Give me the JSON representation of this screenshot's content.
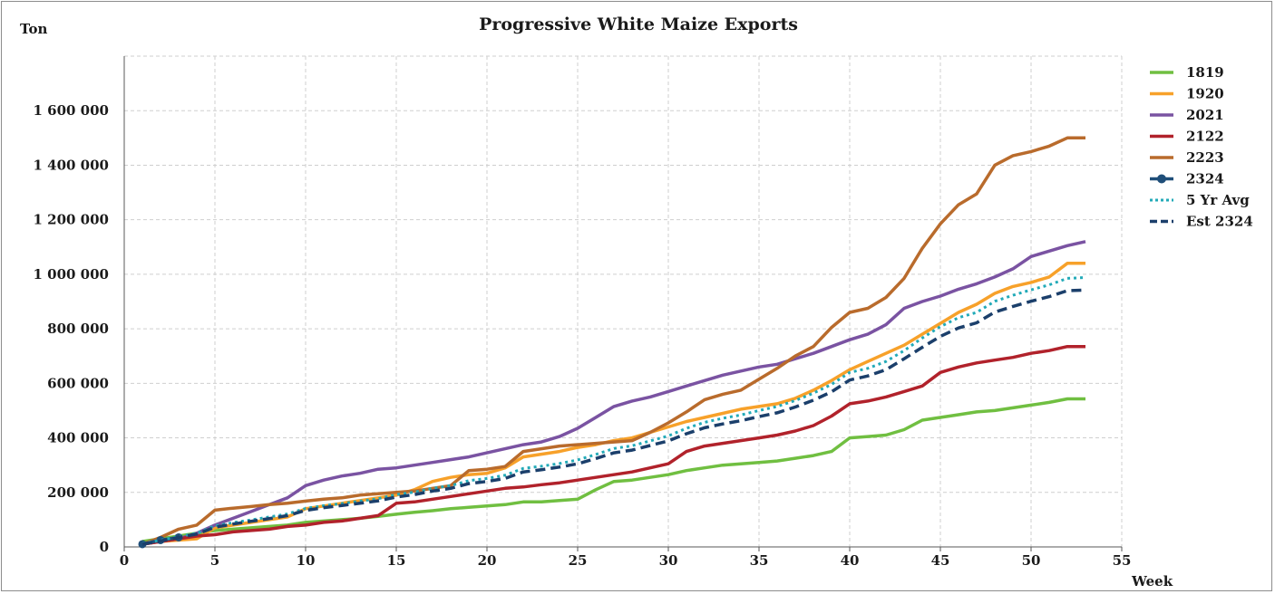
{
  "chart_data": {
    "type": "line",
    "title": "Progressive White Maize Exports",
    "xlabel": "Week",
    "ylabel": "Ton",
    "xlim": [
      0,
      55
    ],
    "ylim": [
      0,
      1800000
    ],
    "xticks": [
      "0",
      "5",
      "10",
      "15",
      "20",
      "25",
      "30",
      "35",
      "40",
      "45",
      "50",
      "55"
    ],
    "yticks": [
      "0",
      "200 000",
      "400 000",
      "600 000",
      "800 000",
      "1 000 000",
      "1 200 000",
      "1 400 000",
      "1 600 000"
    ],
    "grid": true,
    "legend_position": "right",
    "series": [
      {
        "name": "1819",
        "color": "#70bf41",
        "style": "solid",
        "x": [
          1,
          2,
          3,
          4,
          5,
          6,
          7,
          8,
          9,
          10,
          11,
          12,
          13,
          14,
          15,
          16,
          17,
          18,
          19,
          20,
          21,
          22,
          23,
          24,
          25,
          26,
          27,
          28,
          29,
          30,
          31,
          32,
          33,
          34,
          35,
          36,
          37,
          38,
          39,
          40,
          41,
          42,
          43,
          44,
          45,
          46,
          47,
          48,
          49,
          50,
          51,
          52,
          53
        ],
        "y": [
          20000,
          30000,
          40000,
          50000,
          60000,
          65000,
          70000,
          75000,
          80000,
          90000,
          95000,
          100000,
          105000,
          112000,
          120000,
          127000,
          133000,
          140000,
          145000,
          150000,
          155000,
          165000,
          165000,
          170000,
          175000,
          210000,
          240000,
          245000,
          255000,
          265000,
          280000,
          290000,
          300000,
          305000,
          310000,
          315000,
          325000,
          335000,
          350000,
          400000,
          405000,
          410000,
          430000,
          465000,
          475000,
          485000,
          495000,
          500000,
          510000,
          520000,
          530000,
          543000,
          543000
        ]
      },
      {
        "name": "1920",
        "color": "#f7a12a",
        "style": "solid",
        "x": [
          1,
          2,
          3,
          4,
          5,
          6,
          7,
          8,
          9,
          10,
          11,
          12,
          13,
          14,
          15,
          16,
          17,
          18,
          19,
          20,
          21,
          22,
          23,
          24,
          25,
          26,
          27,
          28,
          29,
          30,
          31,
          32,
          33,
          34,
          35,
          36,
          37,
          38,
          39,
          40,
          41,
          42,
          43,
          44,
          45,
          46,
          47,
          48,
          49,
          50,
          51,
          52,
          53
        ],
        "y": [
          10000,
          20000,
          25000,
          30000,
          70000,
          80000,
          90000,
          100000,
          110000,
          140000,
          150000,
          160000,
          170000,
          180000,
          190000,
          210000,
          240000,
          255000,
          265000,
          270000,
          290000,
          330000,
          340000,
          350000,
          365000,
          375000,
          390000,
          400000,
          420000,
          440000,
          460000,
          475000,
          490000,
          505000,
          515000,
          525000,
          545000,
          575000,
          610000,
          650000,
          680000,
          710000,
          740000,
          780000,
          820000,
          860000,
          890000,
          930000,
          955000,
          970000,
          990000,
          1040000,
          1040000
        ]
      },
      {
        "name": "2021",
        "color": "#7a53a2",
        "style": "solid",
        "x": [
          1,
          2,
          3,
          4,
          5,
          6,
          7,
          8,
          9,
          10,
          11,
          12,
          13,
          14,
          15,
          16,
          17,
          18,
          19,
          20,
          21,
          22,
          23,
          24,
          25,
          26,
          27,
          28,
          29,
          30,
          31,
          32,
          33,
          34,
          35,
          36,
          37,
          38,
          39,
          40,
          41,
          42,
          43,
          44,
          45,
          46,
          47,
          48,
          49,
          50,
          51,
          52,
          53
        ],
        "y": [
          10000,
          20000,
          30000,
          50000,
          80000,
          105000,
          130000,
          155000,
          180000,
          225000,
          245000,
          260000,
          270000,
          285000,
          290000,
          300000,
          310000,
          320000,
          330000,
          345000,
          360000,
          375000,
          385000,
          405000,
          435000,
          475000,
          515000,
          535000,
          550000,
          570000,
          590000,
          610000,
          630000,
          645000,
          660000,
          670000,
          690000,
          710000,
          735000,
          760000,
          780000,
          815000,
          875000,
          900000,
          920000,
          945000,
          965000,
          990000,
          1020000,
          1065000,
          1085000,
          1105000,
          1120000
        ]
      },
      {
        "name": "2122",
        "color": "#b1222b",
        "style": "solid",
        "x": [
          1,
          2,
          3,
          4,
          5,
          6,
          7,
          8,
          9,
          10,
          11,
          12,
          13,
          14,
          15,
          16,
          17,
          18,
          19,
          20,
          21,
          22,
          23,
          24,
          25,
          26,
          27,
          28,
          29,
          30,
          31,
          32,
          33,
          34,
          35,
          36,
          37,
          38,
          39,
          40,
          41,
          42,
          43,
          44,
          45,
          46,
          47,
          48,
          49,
          50,
          51,
          52,
          53
        ],
        "y": [
          10000,
          20000,
          30000,
          40000,
          45000,
          55000,
          60000,
          65000,
          75000,
          80000,
          90000,
          95000,
          105000,
          115000,
          160000,
          165000,
          175000,
          185000,
          195000,
          205000,
          215000,
          220000,
          228000,
          235000,
          245000,
          255000,
          265000,
          275000,
          290000,
          305000,
          350000,
          370000,
          380000,
          390000,
          400000,
          410000,
          425000,
          445000,
          480000,
          525000,
          535000,
          550000,
          570000,
          590000,
          640000,
          660000,
          675000,
          685000,
          695000,
          710000,
          720000,
          735000,
          735000
        ]
      },
      {
        "name": "2223",
        "color": "#b96b2c",
        "style": "solid",
        "x": [
          1,
          2,
          3,
          4,
          5,
          6,
          7,
          8,
          9,
          10,
          11,
          12,
          13,
          14,
          15,
          16,
          17,
          18,
          19,
          20,
          21,
          22,
          23,
          24,
          25,
          26,
          27,
          28,
          29,
          30,
          31,
          32,
          33,
          34,
          35,
          36,
          37,
          38,
          39,
          40,
          41,
          42,
          43,
          44,
          45,
          46,
          47,
          48,
          49,
          50,
          51,
          52,
          53
        ],
        "y": [
          10000,
          35000,
          65000,
          80000,
          135000,
          142000,
          148000,
          155000,
          160000,
          168000,
          175000,
          180000,
          190000,
          195000,
          200000,
          205000,
          215000,
          225000,
          280000,
          285000,
          295000,
          350000,
          360000,
          370000,
          375000,
          380000,
          385000,
          390000,
          420000,
          455000,
          495000,
          540000,
          560000,
          575000,
          615000,
          655000,
          700000,
          735000,
          805000,
          860000,
          875000,
          915000,
          985000,
          1095000,
          1185000,
          1255000,
          1295000,
          1400000,
          1435000,
          1450000,
          1470000,
          1500000,
          1500000
        ]
      },
      {
        "name": "2324",
        "color": "#1f4e79",
        "style": "solid-marker",
        "x": [
          1,
          2,
          3
        ],
        "y": [
          10000,
          25000,
          35000
        ]
      },
      {
        "name": "5 Yr Avg",
        "color": "#22aab8",
        "style": "dotted",
        "x": [
          1,
          2,
          3,
          4,
          5,
          6,
          7,
          8,
          9,
          10,
          11,
          12,
          13,
          14,
          15,
          16,
          17,
          18,
          19,
          20,
          21,
          22,
          23,
          24,
          25,
          26,
          27,
          28,
          29,
          30,
          31,
          32,
          33,
          34,
          35,
          36,
          37,
          38,
          39,
          40,
          41,
          42,
          43,
          44,
          45,
          46,
          47,
          48,
          49,
          50,
          51,
          52,
          53
        ],
        "y": [
          12000,
          25000,
          38000,
          50000,
          77000,
          89000,
          99000,
          110000,
          121000,
          141000,
          151000,
          159000,
          168000,
          177000,
          192000,
          201000,
          215000,
          225000,
          243000,
          251000,
          263000,
          288000,
          296000,
          306000,
          319000,
          339000,
          361000,
          371000,
          389000,
          407000,
          435000,
          457000,
          472000,
          484000,
          500000,
          515000,
          537000,
          564000,
          596000,
          640000,
          655000,
          680000,
          720000,
          766000,
          808000,
          841000,
          860000,
          901000,
          923000,
          943000,
          961000,
          985000,
          988000
        ]
      },
      {
        "name": "Est 2324",
        "color": "#1b3f6b",
        "style": "dashed",
        "x": [
          1,
          2,
          3,
          4,
          5,
          6,
          7,
          8,
          9,
          10,
          11,
          12,
          13,
          14,
          15,
          16,
          17,
          18,
          19,
          20,
          21,
          22,
          23,
          24,
          25,
          26,
          27,
          28,
          29,
          30,
          31,
          32,
          33,
          34,
          35,
          36,
          37,
          38,
          39,
          40,
          41,
          42,
          43,
          44,
          45,
          46,
          47,
          48,
          49,
          50,
          51,
          52,
          53
        ],
        "y": [
          10000,
          22000,
          35000,
          47000,
          72000,
          84000,
          94000,
          104000,
          115000,
          134000,
          144000,
          152000,
          160000,
          169000,
          183000,
          192000,
          205000,
          215000,
          232000,
          240000,
          251000,
          275000,
          283000,
          293000,
          305000,
          324000,
          345000,
          355000,
          372000,
          389000,
          415000,
          437000,
          451000,
          463000,
          478000,
          492000,
          513000,
          538000,
          569000,
          612000,
          627000,
          650000,
          690000,
          732000,
          772000,
          803000,
          822000,
          861000,
          882000,
          901000,
          918000,
          940000,
          942000
        ]
      }
    ]
  }
}
